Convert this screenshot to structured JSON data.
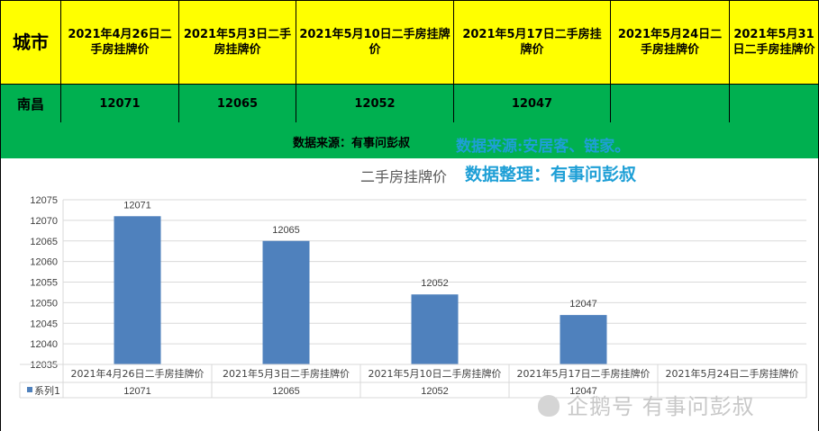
{
  "table": {
    "header": {
      "city_label": "城市",
      "dates": [
        "2021年4月26日二手房挂牌价",
        "2021年5月3日二手房挂牌价",
        "2021年5月10日二手房挂牌价",
        "2021年5月17日二手房挂牌价",
        "2021年5月24日二手房挂牌价",
        "2021年5月31日二手房挂牌价"
      ]
    },
    "row": {
      "city": "南昌",
      "values": [
        "12071",
        "12065",
        "12052",
        "12047",
        "",
        ""
      ]
    },
    "source_text": "数据来源：有事问彭叔",
    "colors": {
      "header_bg": "#ffff00",
      "row_bg": "#00b050"
    }
  },
  "overlay": {
    "source": "数据来源:安居客、链家。",
    "organizer": "数据整理：有事问彭叔",
    "color": "#1e9fd6"
  },
  "chart_data": {
    "type": "bar",
    "title": "二手房挂牌价",
    "categories": [
      "2021年4月26日二手房挂牌价",
      "2021年5月3日二手房挂牌价",
      "2021年5月10日二手房挂牌价",
      "2021年5月17日二手房挂牌价",
      "2021年5月24日二手房挂牌价"
    ],
    "series": [
      {
        "name": "系列1",
        "values": [
          12071,
          12065,
          12052,
          12047,
          null
        ]
      }
    ],
    "data_labels": [
      "12071",
      "12065",
      "12052",
      "12047",
      ""
    ],
    "yticks": [
      "12035",
      "12040",
      "12045",
      "12050",
      "12055",
      "12060",
      "12065",
      "12070",
      "12075"
    ],
    "ylim": [
      12035,
      12075
    ],
    "grid": true,
    "legend": "data-table",
    "bar_color": "#4f81bd"
  },
  "watermark": {
    "icon": "penguin-icon",
    "text": "企鹅号 有事问彭叔"
  }
}
